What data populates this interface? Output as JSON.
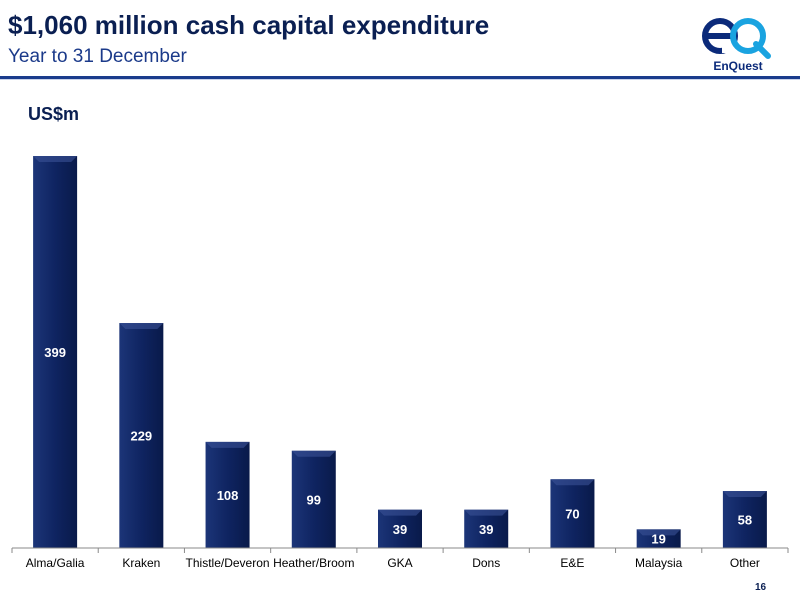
{
  "header": {
    "title": "$1,060 million cash capital expenditure",
    "subtitle": "Year to 31 December"
  },
  "logo": {
    "icon": "enquest-eq-logo",
    "text": "EnQuest",
    "mark": "eQ",
    "colors": {
      "dark": "#0b2a7a",
      "light": "#1aa3e0"
    }
  },
  "chart_data": {
    "type": "bar",
    "ylabel": "US$m",
    "categories": [
      "Alma/Galia",
      "Kraken",
      "Thistle/Deveron",
      "Heather/Broom",
      "GKA",
      "Dons",
      "E&E",
      "Malaysia",
      "Other"
    ],
    "values": [
      399,
      229,
      108,
      99,
      39,
      39,
      70,
      19,
      58
    ],
    "data_labels": [
      "399",
      "229",
      "108",
      "99",
      "39",
      "39",
      "70",
      "19",
      "58"
    ],
    "ylim": [
      0,
      400
    ],
    "grid": false,
    "legend": "none",
    "bar_color": "#0f2461"
  },
  "footer": {
    "page_number": "16"
  }
}
